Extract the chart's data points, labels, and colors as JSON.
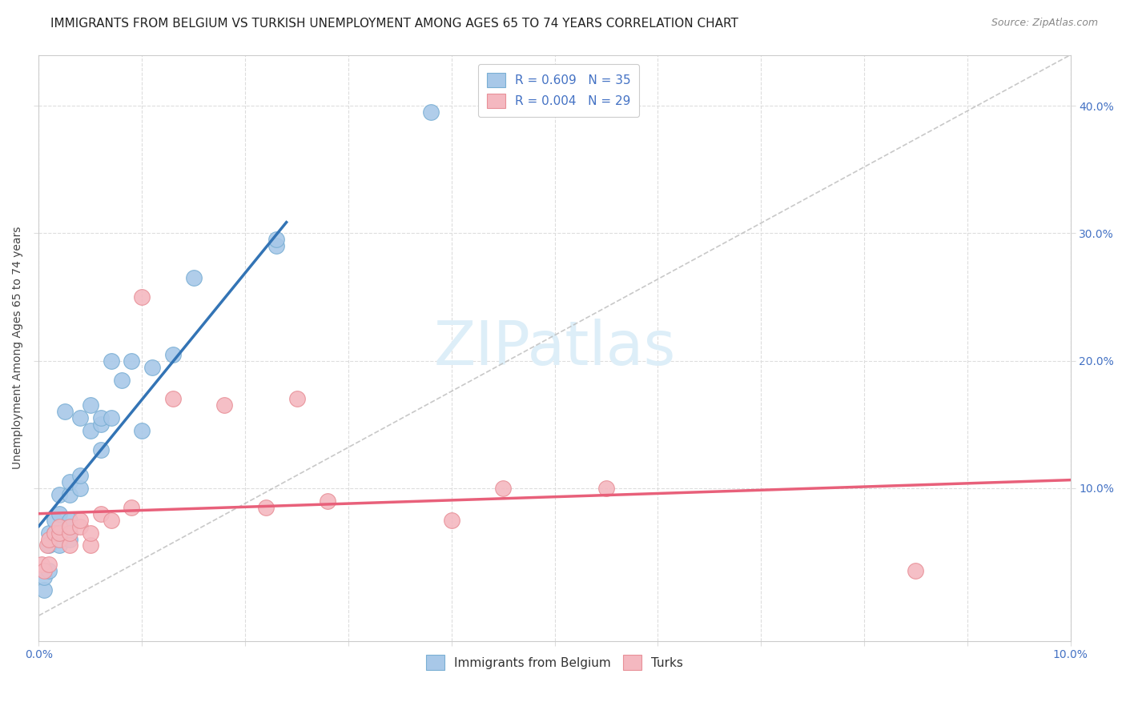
{
  "title": "IMMIGRANTS FROM BELGIUM VS TURKISH UNEMPLOYMENT AMONG AGES 65 TO 74 YEARS CORRELATION CHART",
  "source": "Source: ZipAtlas.com",
  "ylabel": "Unemployment Among Ages 65 to 74 years",
  "legend_label1": "Immigrants from Belgium",
  "legend_label2": "Turks",
  "R1": 0.609,
  "N1": 35,
  "R2": 0.004,
  "N2": 29,
  "color1": "#a8c8e8",
  "color2": "#f4b8c0",
  "color1_edge": "#7aafd4",
  "color2_edge": "#e89098",
  "line1_color": "#3374b5",
  "line2_color": "#e8607a",
  "diag_color": "#bbbbbb",
  "xlim": [
    0.0,
    0.1
  ],
  "ylim": [
    -0.02,
    0.44
  ],
  "ytick_values": [
    0.1,
    0.2,
    0.3,
    0.4
  ],
  "ytick_labels": [
    "10.0%",
    "20.0%",
    "30.0%",
    "40.0%"
  ],
  "blue_scatter_x": [
    0.0005,
    0.0005,
    0.001,
    0.001,
    0.001,
    0.0015,
    0.0015,
    0.002,
    0.002,
    0.002,
    0.002,
    0.0025,
    0.003,
    0.003,
    0.003,
    0.003,
    0.004,
    0.004,
    0.004,
    0.005,
    0.005,
    0.006,
    0.006,
    0.006,
    0.007,
    0.007,
    0.008,
    0.009,
    0.01,
    0.011,
    0.013,
    0.015,
    0.023,
    0.023,
    0.038
  ],
  "blue_scatter_y": [
    0.02,
    0.03,
    0.035,
    0.055,
    0.065,
    0.065,
    0.075,
    0.055,
    0.065,
    0.08,
    0.095,
    0.16,
    0.06,
    0.075,
    0.095,
    0.105,
    0.1,
    0.11,
    0.155,
    0.145,
    0.165,
    0.13,
    0.15,
    0.155,
    0.155,
    0.2,
    0.185,
    0.2,
    0.145,
    0.195,
    0.205,
    0.265,
    0.29,
    0.295,
    0.395
  ],
  "pink_scatter_x": [
    0.0003,
    0.0005,
    0.0008,
    0.001,
    0.001,
    0.0015,
    0.002,
    0.002,
    0.002,
    0.003,
    0.003,
    0.003,
    0.004,
    0.004,
    0.005,
    0.005,
    0.006,
    0.007,
    0.009,
    0.01,
    0.013,
    0.018,
    0.022,
    0.025,
    0.028,
    0.04,
    0.045,
    0.055,
    0.085
  ],
  "pink_scatter_y": [
    0.04,
    0.035,
    0.055,
    0.04,
    0.06,
    0.065,
    0.06,
    0.065,
    0.07,
    0.055,
    0.065,
    0.07,
    0.07,
    0.075,
    0.055,
    0.065,
    0.08,
    0.075,
    0.085,
    0.25,
    0.17,
    0.165,
    0.085,
    0.17,
    0.09,
    0.075,
    0.1,
    0.1,
    0.035
  ],
  "title_fontsize": 11,
  "axis_label_fontsize": 10,
  "tick_fontsize": 10,
  "source_fontsize": 9,
  "watermark_color": "#ddeef8",
  "watermark_fontsize": 55,
  "grid_color": "#dddddd"
}
